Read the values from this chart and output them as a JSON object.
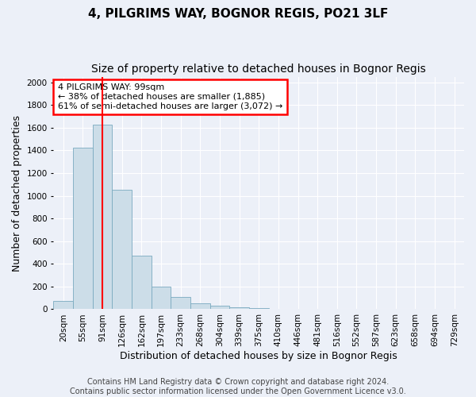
{
  "title_line1": "4, PILGRIMS WAY, BOGNOR REGIS, PO21 3LF",
  "title_line2": "Size of property relative to detached houses in Bognor Regis",
  "xlabel": "Distribution of detached houses by size in Bognor Regis",
  "ylabel": "Number of detached properties",
  "categories": [
    "20sqm",
    "55sqm",
    "91sqm",
    "126sqm",
    "162sqm",
    "197sqm",
    "233sqm",
    "268sqm",
    "304sqm",
    "339sqm",
    "375sqm",
    "410sqm",
    "446sqm",
    "481sqm",
    "516sqm",
    "552sqm",
    "587sqm",
    "623sqm",
    "658sqm",
    "694sqm",
    "729sqm"
  ],
  "values": [
    75,
    1425,
    1630,
    1050,
    470,
    200,
    105,
    55,
    30,
    20,
    10,
    5,
    2,
    5,
    2,
    2,
    2,
    2,
    2,
    2,
    2
  ],
  "bar_color": "#ccdde8",
  "bar_edge_color": "#7aaac0",
  "red_line_x": 2,
  "annotation_text": "4 PILGRIMS WAY: 99sqm\n← 38% of detached houses are smaller (1,885)\n61% of semi-detached houses are larger (3,072) →",
  "annotation_box_color": "white",
  "annotation_box_edge": "red",
  "ylim": [
    0,
    2050
  ],
  "yticks": [
    0,
    200,
    400,
    600,
    800,
    1000,
    1200,
    1400,
    1600,
    1800,
    2000
  ],
  "footnote": "Contains HM Land Registry data © Crown copyright and database right 2024.\nContains public sector information licensed under the Open Government Licence v3.0.",
  "bg_color": "#ecf0f8",
  "grid_color": "white",
  "title_fontsize": 11,
  "subtitle_fontsize": 10,
  "xlabel_fontsize": 9,
  "ylabel_fontsize": 9,
  "tick_fontsize": 7.5,
  "footnote_fontsize": 7,
  "annot_fontsize": 8
}
